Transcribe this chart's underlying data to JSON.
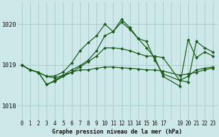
{
  "bg_color": "#cce8e8",
  "grid_color": "#aacccc",
  "line_color": "#1a5c1a",
  "title": "Graphe pression niveau de la mer (hPa)",
  "ylabel_vals": [
    1018,
    1019,
    1020
  ],
  "xlim": [
    -0.5,
    23.5
  ],
  "ylim": [
    1017.65,
    1020.55
  ],
  "series": [
    {
      "x": [
        0,
        1,
        2,
        3,
        4,
        5,
        6,
        7,
        8,
        9,
        10,
        11,
        12,
        13,
        14,
        15,
        16,
        17,
        19,
        20,
        21,
        22,
        23
      ],
      "y": [
        1019.0,
        1018.88,
        1018.82,
        1018.72,
        1018.73,
        1018.83,
        1019.05,
        1019.35,
        1019.55,
        1019.72,
        1020.0,
        1019.82,
        1020.12,
        1019.92,
        1019.65,
        1019.58,
        1019.12,
        1018.78,
        1018.62,
        1018.58,
        1019.58,
        1019.42,
        1019.32
      ]
    },
    {
      "x": [
        0,
        1,
        2,
        3,
        4,
        5,
        6,
        7,
        8,
        9,
        10,
        11,
        12,
        13,
        14,
        15,
        16,
        17,
        19,
        20,
        21,
        22,
        23
      ],
      "y": [
        1019.0,
        1018.88,
        1018.82,
        1018.72,
        1018.68,
        1018.75,
        1018.82,
        1018.88,
        1018.88,
        1018.92,
        1018.95,
        1018.95,
        1018.93,
        1018.92,
        1018.9,
        1018.88,
        1018.88,
        1018.85,
        1018.75,
        1018.78,
        1018.82,
        1018.88,
        1018.92
      ]
    },
    {
      "x": [
        0,
        1,
        2,
        3,
        4,
        5,
        6,
        7,
        8,
        9,
        10,
        11,
        12,
        13,
        14,
        15,
        16,
        17,
        19,
        20,
        21,
        22,
        23
      ],
      "y": [
        1019.0,
        1018.88,
        1018.82,
        1018.52,
        1018.6,
        1018.72,
        1018.82,
        1018.95,
        1019.08,
        1019.22,
        1019.42,
        1019.42,
        1019.4,
        1019.35,
        1019.28,
        1019.22,
        1019.22,
        1019.18,
        1018.62,
        1018.72,
        1018.88,
        1018.92,
        1018.95
      ]
    },
    {
      "x": [
        0,
        1,
        2,
        3,
        4,
        5,
        6,
        7,
        8,
        9,
        10,
        11,
        12,
        13,
        14,
        15,
        16,
        17,
        19,
        20,
        21,
        22,
        23
      ],
      "y": [
        1019.0,
        1018.88,
        1018.82,
        1018.52,
        1018.62,
        1018.75,
        1018.88,
        1018.98,
        1019.12,
        1019.35,
        1019.72,
        1019.82,
        1020.05,
        1019.88,
        1019.65,
        1019.42,
        1019.18,
        1018.72,
        1018.48,
        1019.62,
        1019.18,
        1019.32,
        1019.22
      ]
    }
  ],
  "marker": "D",
  "markersize": 2.0,
  "linewidth": 0.9,
  "xtick_labels": [
    "0",
    "1",
    "2",
    "3",
    "4",
    "5",
    "6",
    "7",
    "8",
    "9",
    "10",
    "11",
    "12",
    "13",
    "14",
    "15",
    "16",
    "17",
    "",
    "19",
    "20",
    "21",
    "22",
    "23"
  ],
  "title_fontsize": 6.0,
  "tick_fontsize": 5.5,
  "ytick_fontsize": 6.5
}
